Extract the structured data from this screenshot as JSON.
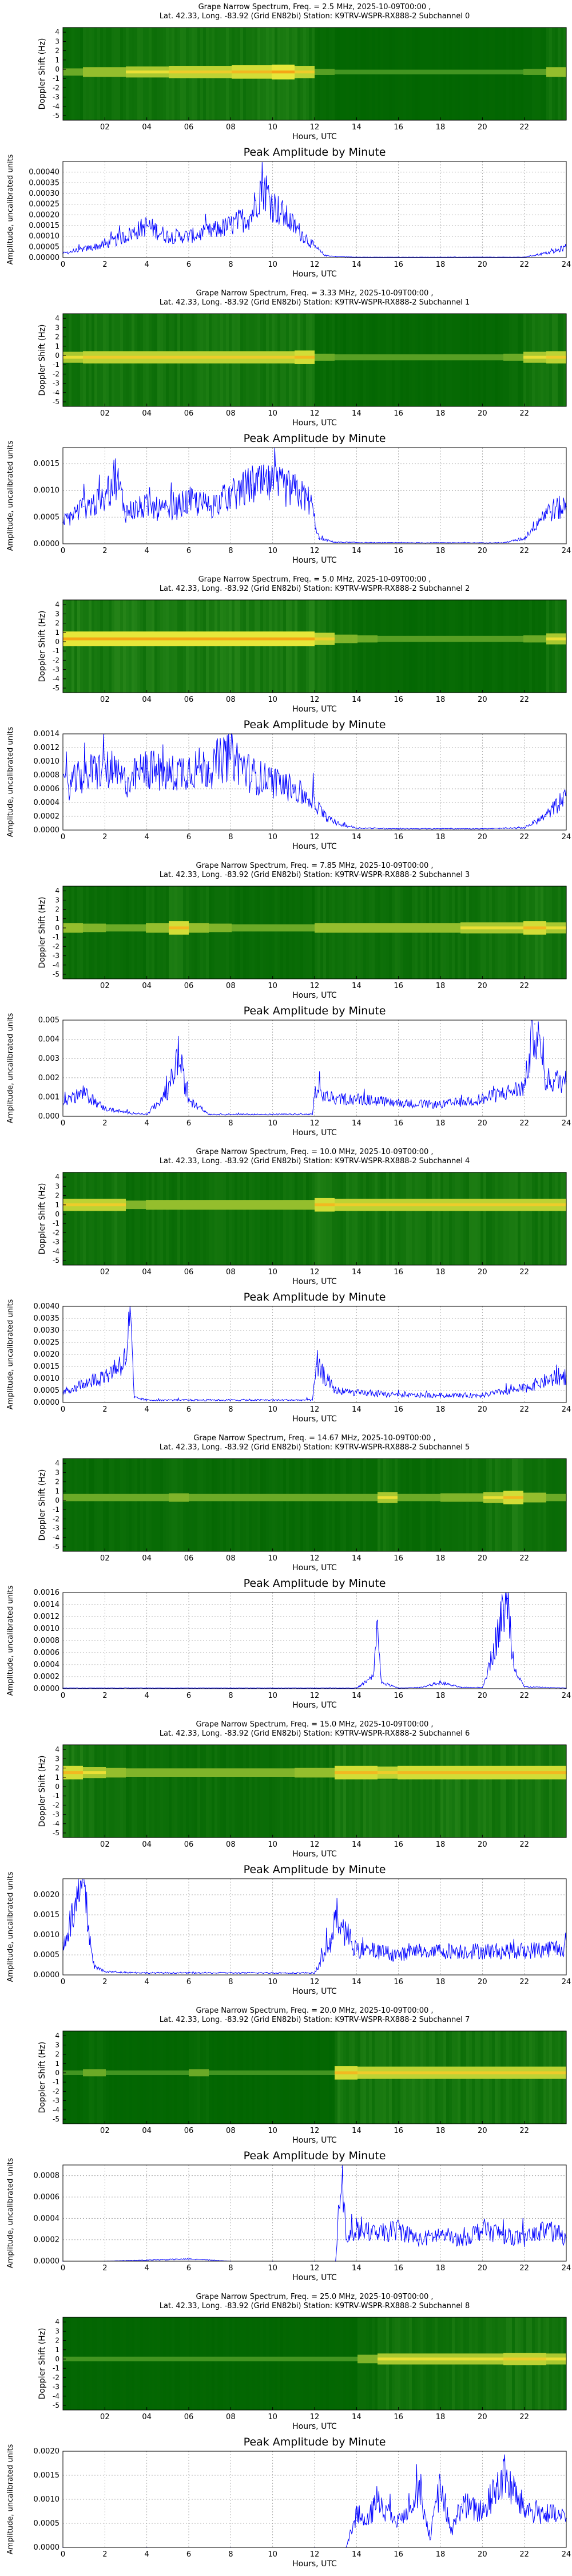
{
  "shared": {
    "hours_label": "Hours, UTC",
    "doppler_label": "Doppler Shift (Hz)",
    "amplitude_label": "Amplitude, uncalibrated units",
    "peak_title": "Peak Amplitude by Minute",
    "location_line": "Lat.  42.33, Long. -83.92 (Grid EN82bi) Station: K9TRV-WSPR-RX888-2",
    "spectrum_xticks": [
      "02",
      "04",
      "06",
      "08",
      "10",
      "12",
      "14",
      "16",
      "18",
      "20",
      "22"
    ],
    "amp_xticks": [
      "0",
      "2",
      "4",
      "6",
      "8",
      "10",
      "12",
      "14",
      "16",
      "18",
      "20",
      "22",
      "24"
    ],
    "doppler_yticks": [
      "4",
      "3",
      "2",
      "1",
      "0",
      "-1",
      "-2",
      "-3",
      "-4",
      "-5"
    ],
    "colors": {
      "line": "#0000ff",
      "bg_dark": "#006400",
      "bg_mid": "#2e8b1e",
      "band": "#e8e83a",
      "band_core": "#ff7f00"
    }
  },
  "chart_data": [
    {
      "type": "heatmap",
      "title": "Grape Narrow Spectrum, Freq. = 2.5 MHz, 2025-10-09T00:00 ,",
      "subchannel": "Subchannel 0",
      "xlabel": "Hours, UTC",
      "ylabel": "Doppler Shift (Hz)",
      "xlim": [
        0,
        24
      ],
      "ylim": [
        -5,
        5
      ],
      "band_center_hz": 0.2,
      "band_strength_by_hour": [
        0.3,
        0.5,
        0.5,
        0.6,
        0.6,
        0.7,
        0.7,
        0.7,
        0.8,
        0.8,
        0.9,
        0.7,
        0.2,
        0.1,
        0.1,
        0.1,
        0.1,
        0.1,
        0.1,
        0.1,
        0.1,
        0.1,
        0.2,
        0.5
      ]
    },
    {
      "type": "line",
      "title": "Peak Amplitude by Minute",
      "xlabel": "Hours, UTC",
      "ylabel": "Amplitude, uncalibrated units",
      "xlim": [
        0,
        24
      ],
      "ylim": [
        0,
        0.00045
      ],
      "yticks": [
        "0.00000",
        "0.00005",
        "0.00010",
        "0.00015",
        "0.00020",
        "0.00025",
        "0.00030",
        "0.00035",
        "0.00040"
      ],
      "x": [
        0,
        1,
        2,
        3,
        4,
        5,
        6,
        7,
        8,
        9,
        9.5,
        10,
        11,
        11.5,
        12,
        12.5,
        13,
        14,
        16,
        18,
        20,
        22,
        23.5,
        24
      ],
      "y": [
        2e-05,
        4e-05,
        6e-05,
        0.0001,
        0.00015,
        0.0001,
        0.0001,
        0.00012,
        0.00015,
        0.0002,
        0.00035,
        0.00025,
        0.00015,
        0.0001,
        5e-05,
        1e-05,
        5e-06,
        2e-06,
        2e-06,
        2e-06,
        2e-06,
        2e-06,
        3e-05,
        5e-05
      ]
    },
    {
      "type": "heatmap",
      "title": "Grape Narrow Spectrum, Freq. = 3.33 MHz, 2025-10-09T00:00 ,",
      "subchannel": "Subchannel 1",
      "xlabel": "Hours, UTC",
      "ylabel": "Doppler Shift (Hz)",
      "xlim": [
        0,
        24
      ],
      "ylim": [
        -5,
        5
      ],
      "band_center_hz": 0.3,
      "band_strength_by_hour": [
        0.6,
        0.7,
        0.7,
        0.7,
        0.7,
        0.7,
        0.7,
        0.7,
        0.7,
        0.7,
        0.7,
        0.8,
        0.3,
        0.2,
        0.2,
        0.2,
        0.2,
        0.2,
        0.2,
        0.2,
        0.2,
        0.3,
        0.6,
        0.7
      ]
    },
    {
      "type": "line",
      "title": "Peak Amplitude by Minute",
      "xlabel": "Hours, UTC",
      "ylabel": "Amplitude, uncalibrated units",
      "xlim": [
        0,
        24
      ],
      "ylim": [
        0,
        0.0018
      ],
      "yticks": [
        "0.0000",
        "0.0005",
        "0.0010",
        "0.0015"
      ],
      "x": [
        0,
        1,
        2,
        2.5,
        3,
        4,
        5,
        6,
        7,
        8,
        9,
        10,
        11,
        11.8,
        12.2,
        13,
        15,
        17,
        19,
        21,
        22,
        23,
        24
      ],
      "y": [
        0.0004,
        0.0007,
        0.0008,
        0.0013,
        0.0006,
        0.0007,
        0.0006,
        0.0008,
        0.0007,
        0.0009,
        0.0011,
        0.0011,
        0.001,
        0.0008,
        0.0001,
        3e-05,
        2e-05,
        2e-05,
        2e-05,
        2e-05,
        0.0001,
        0.0006,
        0.0007
      ]
    },
    {
      "type": "heatmap",
      "title": "Grape Narrow Spectrum, Freq. = 5.0 MHz, 2025-10-09T00:00 ,",
      "subchannel": "Subchannel 2",
      "xlabel": "Hours, UTC",
      "ylabel": "Doppler Shift (Hz)",
      "xlim": [
        0,
        24
      ],
      "ylim": [
        -5,
        5
      ],
      "band_center_hz": 0.8,
      "band_strength_by_hour": [
        0.9,
        0.9,
        0.9,
        0.9,
        0.9,
        0.9,
        0.9,
        0.9,
        0.9,
        0.9,
        0.9,
        0.9,
        0.7,
        0.4,
        0.3,
        0.2,
        0.2,
        0.2,
        0.2,
        0.2,
        0.2,
        0.2,
        0.3,
        0.6
      ]
    },
    {
      "type": "line",
      "title": "Peak Amplitude by Minute",
      "xlabel": "Hours, UTC",
      "ylabel": "Amplitude, uncalibrated units",
      "xlim": [
        0,
        24
      ],
      "ylim": [
        0,
        0.0014
      ],
      "yticks": [
        "0.0000",
        "0.0002",
        "0.0004",
        "0.0006",
        "0.0008",
        "0.0010",
        "0.0012",
        "0.0014"
      ],
      "x": [
        0,
        1,
        2,
        3,
        4,
        5,
        6,
        7,
        8,
        9,
        10,
        11,
        12,
        12.5,
        13,
        14,
        16,
        18,
        20,
        22,
        23,
        24
      ],
      "y": [
        0.0006,
        0.0008,
        0.0009,
        0.0007,
        0.0009,
        0.0008,
        0.0009,
        0.0009,
        0.0011,
        0.0008,
        0.0007,
        0.0006,
        0.0004,
        0.0002,
        0.0001,
        3e-05,
        2e-05,
        2e-05,
        2e-05,
        3e-05,
        0.0002,
        0.0005
      ]
    },
    {
      "type": "heatmap",
      "title": "Grape Narrow Spectrum, Freq. = 7.85 MHz, 2025-10-09T00:00 ,",
      "subchannel": "Subchannel 3",
      "xlabel": "Hours, UTC",
      "ylabel": "Doppler Shift (Hz)",
      "xlim": [
        0,
        24
      ],
      "ylim": [
        -5,
        5
      ],
      "band_center_hz": 0.5,
      "band_strength_by_hour": [
        0.5,
        0.4,
        0.3,
        0.3,
        0.5,
        0.8,
        0.5,
        0.4,
        0.3,
        0.3,
        0.3,
        0.3,
        0.5,
        0.5,
        0.5,
        0.5,
        0.5,
        0.5,
        0.5,
        0.6,
        0.6,
        0.6,
        0.8,
        0.6
      ]
    },
    {
      "type": "line",
      "title": "Peak Amplitude by Minute",
      "xlabel": "Hours, UTC",
      "ylabel": "Amplitude, uncalibrated units",
      "xlim": [
        0,
        24
      ],
      "ylim": [
        0,
        0.005
      ],
      "yticks": [
        "0.000",
        "0.001",
        "0.002",
        "0.003",
        "0.004",
        "0.005"
      ],
      "x": [
        0,
        1,
        2,
        3,
        4,
        5,
        5.5,
        6,
        7,
        8,
        9,
        10,
        11,
        11.9,
        12,
        13,
        14,
        16,
        18,
        20,
        21,
        22,
        22.5,
        23,
        24
      ],
      "y": [
        0.0008,
        0.0012,
        0.0004,
        0.0002,
        0.0001,
        0.0012,
        0.0032,
        0.0008,
        0.0001,
        0.0001,
        0.0001,
        0.0001,
        0.0001,
        0.0001,
        0.0012,
        0.0009,
        0.0009,
        0.0007,
        0.0006,
        0.0009,
        0.0012,
        0.0015,
        0.0048,
        0.0019,
        0.0018
      ]
    },
    {
      "type": "heatmap",
      "title": "Grape Narrow Spectrum, Freq. = 10.0 MHz, 2025-10-09T00:00 ,",
      "subchannel": "Subchannel 4",
      "xlabel": "Hours, UTC",
      "ylabel": "Doppler Shift (Hz)",
      "xlim": [
        0,
        24
      ],
      "ylim": [
        -5,
        5
      ],
      "band_center_hz": 1.5,
      "band_strength_by_hour": [
        0.7,
        0.7,
        0.7,
        0.4,
        0.5,
        0.5,
        0.5,
        0.5,
        0.5,
        0.5,
        0.5,
        0.5,
        0.8,
        0.7,
        0.7,
        0.7,
        0.7,
        0.7,
        0.7,
        0.7,
        0.7,
        0.7,
        0.7,
        0.7
      ]
    },
    {
      "type": "line",
      "title": "Peak Amplitude by Minute",
      "xlabel": "Hours, UTC",
      "ylabel": "Amplitude, uncalibrated units",
      "xlim": [
        0,
        24
      ],
      "ylim": [
        0,
        0.004
      ],
      "yticks": [
        "0.0000",
        "0.0005",
        "0.0010",
        "0.0015",
        "0.0020",
        "0.0025",
        "0.0030",
        "0.0035",
        "0.0040"
      ],
      "x": [
        0,
        1,
        2,
        3,
        3.2,
        3.4,
        4,
        6,
        8,
        10,
        11.9,
        12.1,
        13,
        14,
        16,
        18,
        20,
        22,
        23,
        24
      ],
      "y": [
        0.0004,
        0.0008,
        0.0011,
        0.0018,
        0.0037,
        0.0002,
        0.0001,
        0.0001,
        0.0001,
        0.0001,
        0.0001,
        0.0015,
        0.0005,
        0.0004,
        0.0003,
        0.0003,
        0.0003,
        0.0006,
        0.0009,
        0.0011
      ]
    },
    {
      "type": "heatmap",
      "title": "Grape Narrow Spectrum, Freq. = 14.67 MHz, 2025-10-09T00:00 ,",
      "subchannel": "Subchannel 5",
      "xlabel": "Hours, UTC",
      "ylabel": "Doppler Shift (Hz)",
      "xlim": [
        0,
        24
      ],
      "ylim": [
        -5,
        5
      ],
      "band_center_hz": 0.8,
      "band_strength_by_hour": [
        0.3,
        0.3,
        0.3,
        0.3,
        0.3,
        0.4,
        0.3,
        0.3,
        0.3,
        0.3,
        0.3,
        0.3,
        0.3,
        0.3,
        0.3,
        0.6,
        0.3,
        0.3,
        0.4,
        0.4,
        0.6,
        0.8,
        0.5,
        0.3
      ]
    },
    {
      "type": "line",
      "title": "Peak Amplitude by Minute",
      "xlabel": "Hours, UTC",
      "ylabel": "Amplitude, uncalibrated units",
      "xlim": [
        0,
        24
      ],
      "ylim": [
        0,
        0.0016
      ],
      "yticks": [
        "0.0000",
        "0.0002",
        "0.0004",
        "0.0006",
        "0.0008",
        "0.0010",
        "0.0012",
        "0.0014",
        "0.0016"
      ],
      "x": [
        0,
        4,
        8,
        12,
        14,
        14.8,
        15,
        15.2,
        16,
        17,
        18,
        19,
        20,
        20.5,
        21,
        21.2,
        21.5,
        22,
        24
      ],
      "y": [
        1e-05,
        1e-05,
        1e-05,
        1e-05,
        1e-05,
        0.0002,
        0.001,
        0.0001,
        1e-05,
        2e-05,
        0.0001,
        2e-05,
        2e-05,
        0.0006,
        0.0013,
        0.0015,
        0.0004,
        3e-05,
        1e-05
      ]
    },
    {
      "type": "heatmap",
      "title": "Grape Narrow Spectrum, Freq. = 15.0 MHz, 2025-10-09T00:00 ,",
      "subchannel": "Subchannel 6",
      "xlabel": "Hours, UTC",
      "ylabel": "Doppler Shift (Hz)",
      "xlim": [
        0,
        24
      ],
      "ylim": [
        -5,
        5
      ],
      "band_center_hz": 2.0,
      "band_strength_by_hour": [
        0.8,
        0.6,
        0.5,
        0.4,
        0.4,
        0.4,
        0.4,
        0.4,
        0.4,
        0.4,
        0.4,
        0.5,
        0.5,
        0.8,
        0.8,
        0.7,
        0.8,
        0.8,
        0.8,
        0.8,
        0.8,
        0.8,
        0.8,
        0.8
      ]
    },
    {
      "type": "line",
      "title": "Peak Amplitude by Minute",
      "xlabel": "Hours, UTC",
      "ylabel": "Amplitude, uncalibrated units",
      "xlim": [
        0,
        24
      ],
      "ylim": [
        0,
        0.0024
      ],
      "yticks": [
        "0.0000",
        "0.0005",
        "0.0010",
        "0.0015",
        "0.0020"
      ],
      "x": [
        0,
        0.5,
        1,
        1.2,
        1.5,
        2,
        4,
        6,
        8,
        10,
        12,
        12.8,
        13,
        14,
        15,
        16,
        17,
        18,
        20,
        22,
        24
      ],
      "y": [
        0.0008,
        0.0015,
        0.0023,
        0.0012,
        0.0002,
        8e-05,
        5e-05,
        5e-05,
        5e-05,
        5e-05,
        5e-05,
        0.0008,
        0.0015,
        0.0006,
        0.0006,
        0.0005,
        0.0006,
        0.0006,
        0.0006,
        0.0006,
        0.0007
      ]
    },
    {
      "type": "heatmap",
      "title": "Grape Narrow Spectrum, Freq. = 20.0 MHz, 2025-10-09T00:00 ,",
      "subchannel": "Subchannel 7",
      "xlabel": "Hours, UTC",
      "ylabel": "Doppler Shift (Hz)",
      "xlim": [
        0,
        24
      ],
      "ylim": [
        -5,
        5
      ],
      "band_center_hz": 0.5,
      "band_strength_by_hour": [
        0.1,
        0.3,
        0.1,
        0.1,
        0.1,
        0.1,
        0.3,
        0.1,
        0.1,
        0.1,
        0.1,
        0.1,
        0.1,
        0.8,
        0.7,
        0.7,
        0.7,
        0.7,
        0.7,
        0.7,
        0.7,
        0.7,
        0.7,
        0.7
      ]
    },
    {
      "type": "line",
      "title": "Peak Amplitude by Minute",
      "xlabel": "Hours, UTC",
      "ylabel": "Amplitude, uncalibrated units",
      "xlim": [
        0,
        24
      ],
      "ylim": [
        0,
        0.0009
      ],
      "yticks": [
        "0.0000",
        "0.0002",
        "0.0004",
        "0.0006",
        "0.0008"
      ],
      "x": [
        0,
        2,
        4,
        6,
        8,
        10,
        12,
        13,
        13.3,
        13.5,
        14,
        15,
        16,
        17,
        18,
        19,
        20,
        21,
        22,
        23,
        24
      ],
      "y": [
        0,
        0,
        1e-05,
        2e-05,
        0,
        0,
        0,
        0,
        0.00088,
        0.0002,
        0.0003,
        0.00025,
        0.0003,
        0.0002,
        0.00025,
        0.0002,
        0.0003,
        0.00025,
        0.0002,
        0.0003,
        0.00022
      ]
    },
    {
      "type": "heatmap",
      "title": "Grape Narrow Spectrum, Freq. = 25.0 MHz, 2025-10-09T00:00 ,",
      "subchannel": "Subchannel 8",
      "xlabel": "Hours, UTC",
      "ylabel": "Doppler Shift (Hz)",
      "xlim": [
        0,
        24
      ],
      "ylim": [
        -5,
        5
      ],
      "band_center_hz": 0.5,
      "band_strength_by_hour": [
        0.1,
        0.1,
        0.1,
        0.1,
        0.1,
        0.1,
        0.1,
        0.1,
        0.1,
        0.1,
        0.1,
        0.1,
        0.1,
        0.1,
        0.4,
        0.6,
        0.6,
        0.6,
        0.6,
        0.6,
        0.6,
        0.7,
        0.7,
        0.6
      ]
    },
    {
      "type": "line",
      "title": "Peak Amplitude by Minute",
      "xlabel": "Hours, UTC",
      "ylabel": "Amplitude, uncalibrated units",
      "xlim": [
        0,
        24
      ],
      "ylim": [
        0,
        0.002
      ],
      "yticks": [
        "0.0000",
        "0.0005",
        "0.0010",
        "0.0015",
        "0.0020"
      ],
      "x": [
        0,
        4,
        8,
        12,
        13.5,
        14,
        14.5,
        15,
        16,
        17,
        17.5,
        18,
        18.5,
        19,
        20,
        21,
        22,
        23,
        24
      ],
      "y": [
        0,
        0,
        0,
        0,
        0,
        0.0007,
        0.0005,
        0.001,
        0.0005,
        0.0013,
        0.0002,
        0.0013,
        0.0003,
        0.0009,
        0.0007,
        0.0015,
        0.0008,
        0.0007,
        0.0006
      ]
    }
  ]
}
